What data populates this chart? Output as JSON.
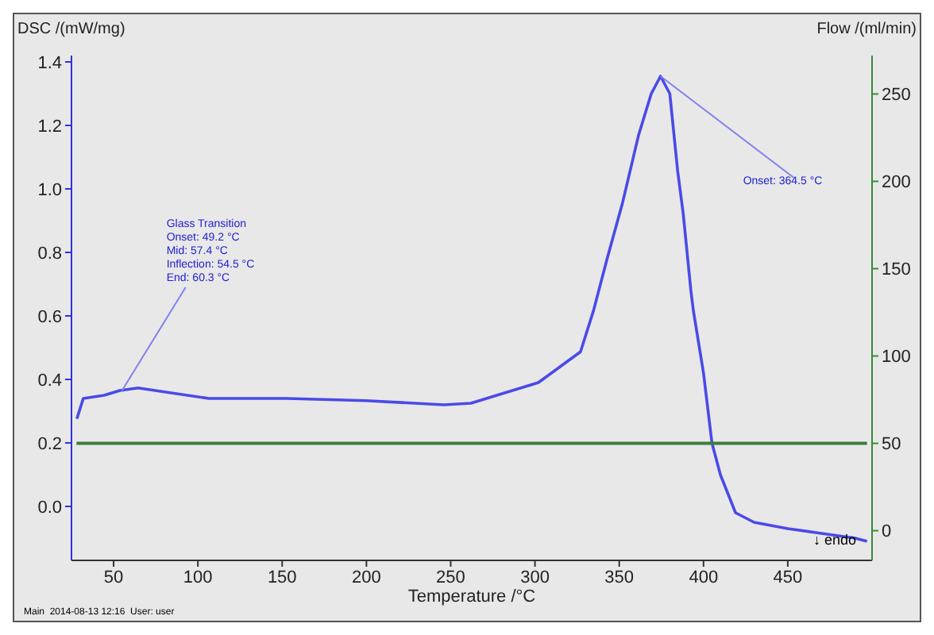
{
  "chart_data": {
    "type": "line",
    "xlabel": "Temperature /°C",
    "ylabel": "DSC /(mW/mg)",
    "y2label": "Flow /(ml/min)",
    "xlim": [
      25,
      500
    ],
    "xticks": [
      50,
      100,
      150,
      200,
      250,
      300,
      350,
      400,
      450
    ],
    "ylim": [
      -0.17,
      1.42
    ],
    "yticks": [
      {
        "value": 0,
        "label": "0.0"
      },
      {
        "value": 0.2,
        "label": "0.2"
      },
      {
        "value": 0.4,
        "label": "0.4"
      },
      {
        "value": 0.6,
        "label": "0.6"
      },
      {
        "value": 0.8,
        "label": "0.8"
      },
      {
        "value": 1,
        "label": "1.0"
      },
      {
        "value": 1.2,
        "label": "1.2"
      },
      {
        "value": 1.4,
        "label": "1.4"
      }
    ],
    "y2lim": [
      -17,
      272
    ],
    "y2ticks": [
      0,
      50,
      100,
      150,
      200,
      250
    ],
    "series": [
      {
        "color": "#4a4ae8",
        "x": [
          28.2,
          32,
          44.4,
          53.7,
          64.5,
          106.5,
          153,
          199.5,
          246,
          262,
          302,
          327,
          334.7,
          342.8,
          352,
          361.4,
          369,
          374.5,
          380,
          384.7,
          388,
          392.5,
          394,
          400,
          405,
          410,
          419,
          430,
          450,
          470,
          490,
          497
        ],
        "values": [
          0.276,
          0.34,
          0.35,
          0.365,
          0.373,
          0.34,
          0.34,
          0.333,
          0.32,
          0.325,
          0.39,
          0.487,
          0.616,
          0.78,
          0.957,
          1.168,
          1.3,
          1.355,
          1.3,
          1.055,
          0.92,
          0.68,
          0.616,
          0.42,
          0.2,
          0.1,
          -0.02,
          -0.05,
          -0.07,
          -0.085,
          -0.1,
          -0.11
        ]
      },
      {
        "color": "#3a7d3a",
        "axis": "y2",
        "x": [
          28,
          497
        ],
        "values": [
          50,
          50
        ]
      }
    ],
    "annotations": [
      {
        "text": "Glass Transition\nOnset:  49.2 °C\nMid:  57.4 °C\nInflection:  54.5 °C\nEnd:  60.3 °C",
        "x": 55,
        "y": 0.365
      },
      {
        "text": "Onset: 364.5 °C",
        "x": 374.5,
        "y": 1.355
      },
      "↓ endo",
      "Main  2014-08-13 12:16  User: user"
    ]
  }
}
